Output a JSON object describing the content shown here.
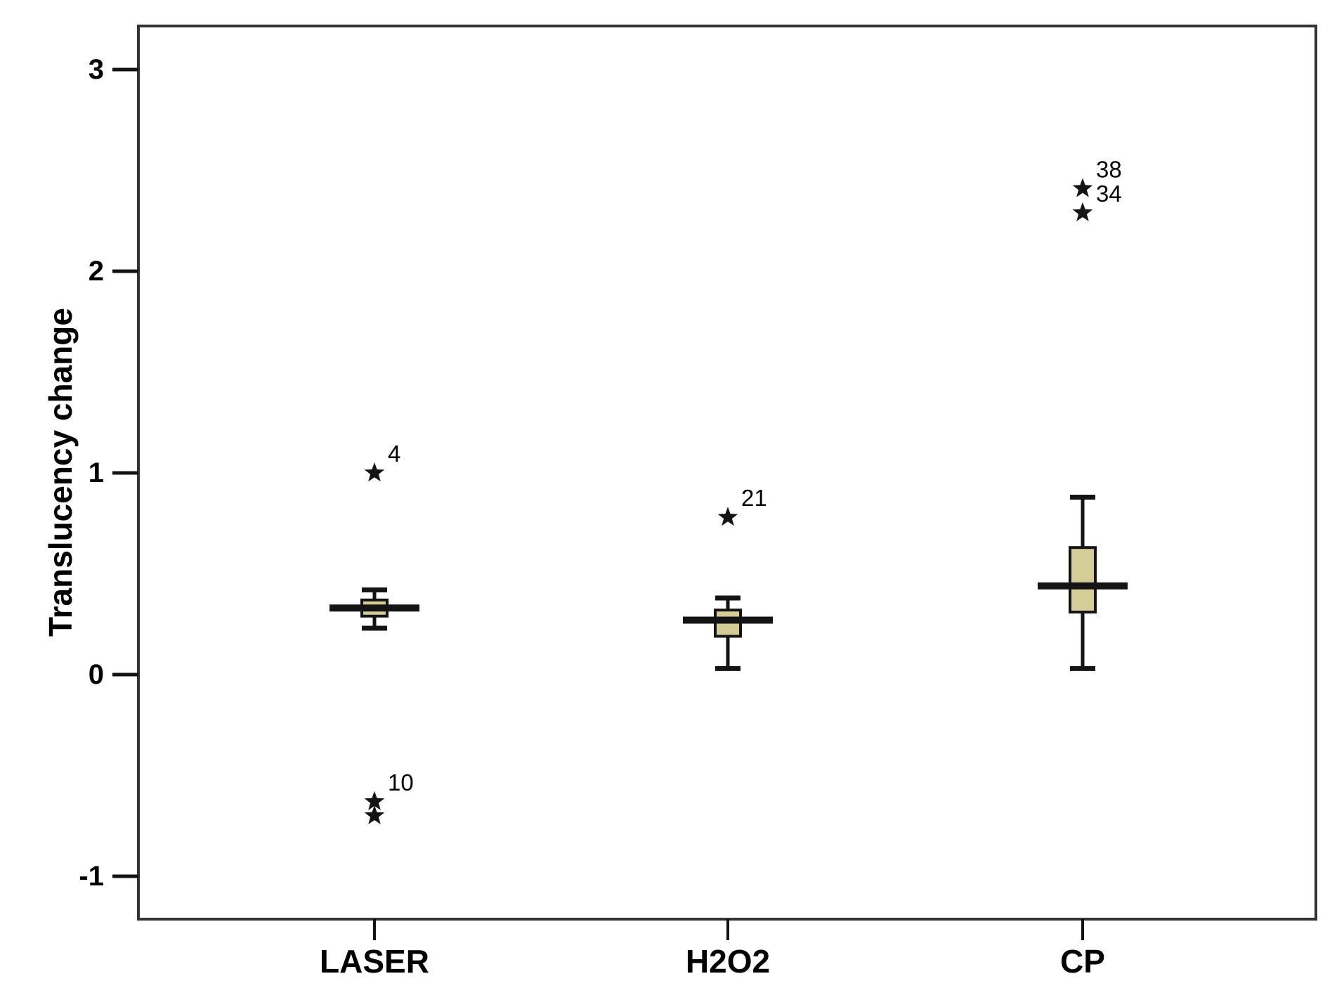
{
  "figure": {
    "background": "#ffffff"
  },
  "chart_data": {
    "type": "boxplot",
    "title": "",
    "xlabel": "",
    "ylabel": "Translucency change",
    "categories": [
      "LASER",
      "H2O2",
      "CP"
    ],
    "y_axis": {
      "ticks": [
        3,
        2,
        1,
        0,
        -1
      ],
      "tick_labels": [
        "3",
        "2",
        "1",
        "0",
        "-1"
      ],
      "ylim": [
        -1.2,
        3.2
      ],
      "grid": false
    },
    "legend": "none",
    "series": [
      {
        "category": "LASER",
        "whisker_low": 0.23,
        "q1": 0.29,
        "median": 0.33,
        "q3": 0.37,
        "whisker_high": 0.42,
        "outliers": [
          {
            "value": 1.0,
            "label": "4"
          },
          {
            "value": -0.63,
            "label": "10"
          },
          {
            "value": -0.7,
            "label": ""
          }
        ]
      },
      {
        "category": "H2O2",
        "whisker_low": 0.03,
        "q1": 0.19,
        "median": 0.27,
        "q3": 0.32,
        "whisker_high": 0.38,
        "outliers": [
          {
            "value": 0.78,
            "label": "21"
          }
        ]
      },
      {
        "category": "CP",
        "whisker_low": 0.03,
        "q1": 0.31,
        "median": 0.44,
        "q3": 0.63,
        "whisker_high": 0.88,
        "outliers": [
          {
            "value": 2.41,
            "label": "38"
          },
          {
            "value": 2.29,
            "label": "34"
          }
        ]
      }
    ],
    "style": {
      "box_fill": "#d5cd98",
      "line_color": "#141414",
      "frame_color": "#333333",
      "text_color": "#000000",
      "outlier_marker": "star"
    }
  }
}
